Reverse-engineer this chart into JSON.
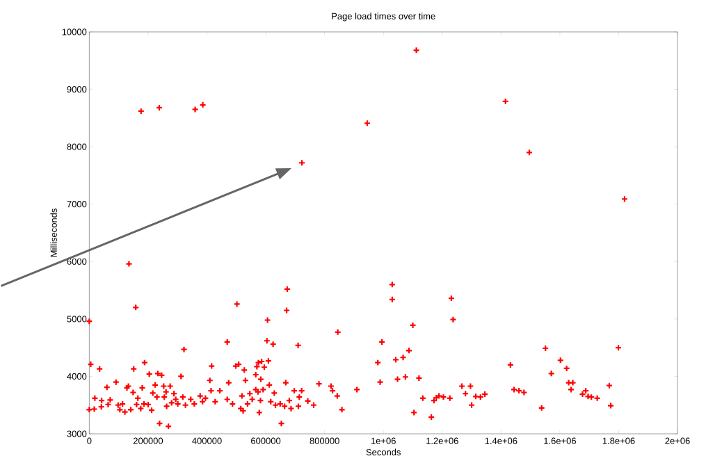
{
  "chart_data": {
    "type": "scatter",
    "title": "Page load times over time",
    "xlabel": "Seconds",
    "ylabel": "Milliseconds",
    "xlim": [
      0,
      2000000
    ],
    "ylim": [
      3000,
      10000
    ],
    "xticks": [
      0,
      200000,
      400000,
      600000,
      800000,
      {
        "value": 1000000,
        "label": "1e+06"
      },
      {
        "value": 1200000,
        "label": "1.2e+06"
      },
      {
        "value": 1400000,
        "label": "1.4e+06"
      },
      {
        "value": 1600000,
        "label": "1.6e+06"
      },
      {
        "value": 1800000,
        "label": "1.8e+06"
      },
      {
        "value": 2000000,
        "label": "2e+06"
      }
    ],
    "yticks": [
      3000,
      4000,
      5000,
      6000,
      7000,
      8000,
      9000,
      10000
    ],
    "grid": false,
    "marker": "cross",
    "series": [
      {
        "color": "#ff0000",
        "x": [
          0,
          5000,
          0,
          17000,
          35000,
          19000,
          42000,
          41000,
          60000,
          71000,
          64000,
          91000,
          98000,
          104000,
          113000,
          121000,
          128000,
          133000,
          135000,
          141000,
          149000,
          151000,
          158000,
          165000,
          161000,
          175000,
          176000,
          180000,
          188000,
          186000,
          200000,
          204000,
          212000,
          216000,
          224000,
          230000,
          233000,
          238000,
          246000,
          239000,
          253000,
          255000,
          261000,
          263000,
          269000,
          275000,
          280000,
          288000,
          294000,
          301000,
          312000,
          318000,
          322000,
          327000,
          345000,
          357000,
          360000,
          377000,
          385000,
          386000,
          395000,
          410000,
          414000,
          416000,
          428000,
          444000,
          469000,
          474000,
          469000,
          487000,
          498000,
          502000,
          508000,
          519000,
          527000,
          515000,
          531000,
          523000,
          538000,
          546000,
          554000,
          566000,
          570000,
          575000,
          586000,
          595000,
          609000,
          583000,
          566000,
          574000,
          591000,
          582000,
          578000,
          604000,
          606000,
          625000,
          612000,
          629000,
          617000,
          633000,
          649000,
          653000,
          664000,
          668000,
          671000,
          673000,
          680000,
          686000,
          697000,
          710000,
          714000,
          722000,
          711000,
          723000,
          743000,
          763000,
          781000,
          822000,
          827000,
          843000,
          845000,
          859000,
          910000,
          945000,
          981000,
          989000,
          995000,
          1030000,
          1030000,
          1042000,
          1048000,
          1067000,
          1087000,
          1075000,
          1100000,
          1104000,
          1112000,
          1121000,
          1134000,
          1163000,
          1172000,
          1180000,
          1189000,
          1204000,
          1226000,
          1231000,
          1237000,
          1267000,
          1279000,
          1296000,
          1300000,
          1314000,
          1330000,
          1345000,
          1415000,
          1432000,
          1444000,
          1461000,
          1478000,
          1496000,
          1538000,
          1551000,
          1571000,
          1602000,
          1623000,
          1630000,
          1644000,
          1638000,
          1677000,
          1688000,
          1696000,
          1707000,
          1727000,
          1768000,
          1773000,
          1799000,
          1820000
        ],
        "values": [
          4960,
          4210,
          3420,
          3430,
          4130,
          3620,
          3580,
          3470,
          3810,
          3590,
          3510,
          3900,
          3500,
          3420,
          3520,
          3380,
          3800,
          3830,
          5960,
          3420,
          3720,
          4130,
          5200,
          3620,
          3510,
          3440,
          8620,
          3800,
          4240,
          3520,
          3510,
          4040,
          3410,
          3710,
          3850,
          3640,
          4050,
          8680,
          4020,
          3180,
          3830,
          3640,
          3730,
          3480,
          3130,
          3830,
          3540,
          3700,
          3600,
          3520,
          4000,
          3640,
          4470,
          3500,
          3600,
          3520,
          8650,
          3660,
          3560,
          8730,
          3620,
          3930,
          3750,
          4180,
          3560,
          3750,
          4600,
          3890,
          3600,
          3520,
          4180,
          5260,
          4210,
          3660,
          4110,
          3440,
          3930,
          3400,
          3520,
          3700,
          3600,
          4030,
          4170,
          4240,
          4260,
          4160,
          4270,
          3950,
          3770,
          3730,
          3770,
          3580,
          3370,
          4620,
          4980,
          4560,
          3850,
          3710,
          3560,
          3500,
          3520,
          3180,
          3480,
          3890,
          5150,
          5520,
          3580,
          3440,
          3750,
          4540,
          3640,
          3750,
          3480,
          7720,
          3570,
          3500,
          3870,
          3830,
          3750,
          3660,
          4770,
          3420,
          3770,
          8410,
          4240,
          3900,
          4600,
          5600,
          5340,
          4290,
          3950,
          4330,
          4450,
          3990,
          4890,
          3370,
          9680,
          3970,
          3620,
          3290,
          3580,
          3630,
          3660,
          3640,
          3620,
          5360,
          4990,
          3830,
          3700,
          3830,
          3500,
          3650,
          3640,
          3690,
          8790,
          4200,
          3770,
          3750,
          3720,
          7900,
          3450,
          4490,
          4050,
          4280,
          4140,
          3890,
          3890,
          3770,
          3690,
          3750,
          3650,
          3640,
          3620,
          3840,
          3490,
          4500,
          7090
        ]
      }
    ]
  }
}
